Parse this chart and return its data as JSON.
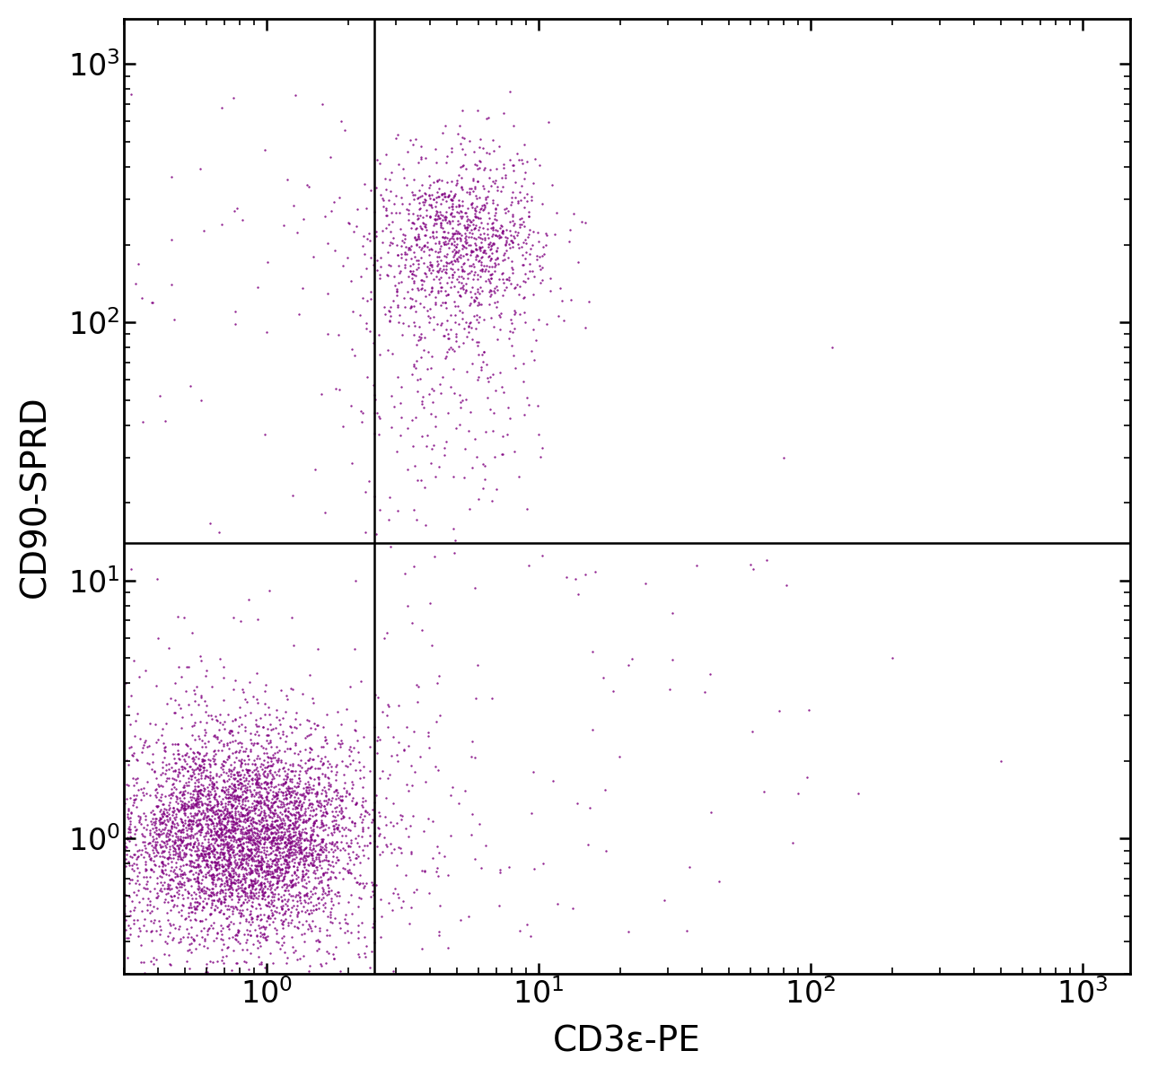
{
  "xlabel": "CD3ε-PE",
  "ylabel": "CD90-SPRD",
  "xlim": [
    0.3,
    1500
  ],
  "ylim": [
    0.3,
    1500
  ],
  "dot_color": "#800080",
  "background_color": "#ffffff",
  "gate_x": 2.5,
  "gate_y": 14.0,
  "xlabel_fontsize": 28,
  "ylabel_fontsize": 28,
  "tick_fontsize": 24,
  "dot_size": 3,
  "dot_alpha": 0.85
}
